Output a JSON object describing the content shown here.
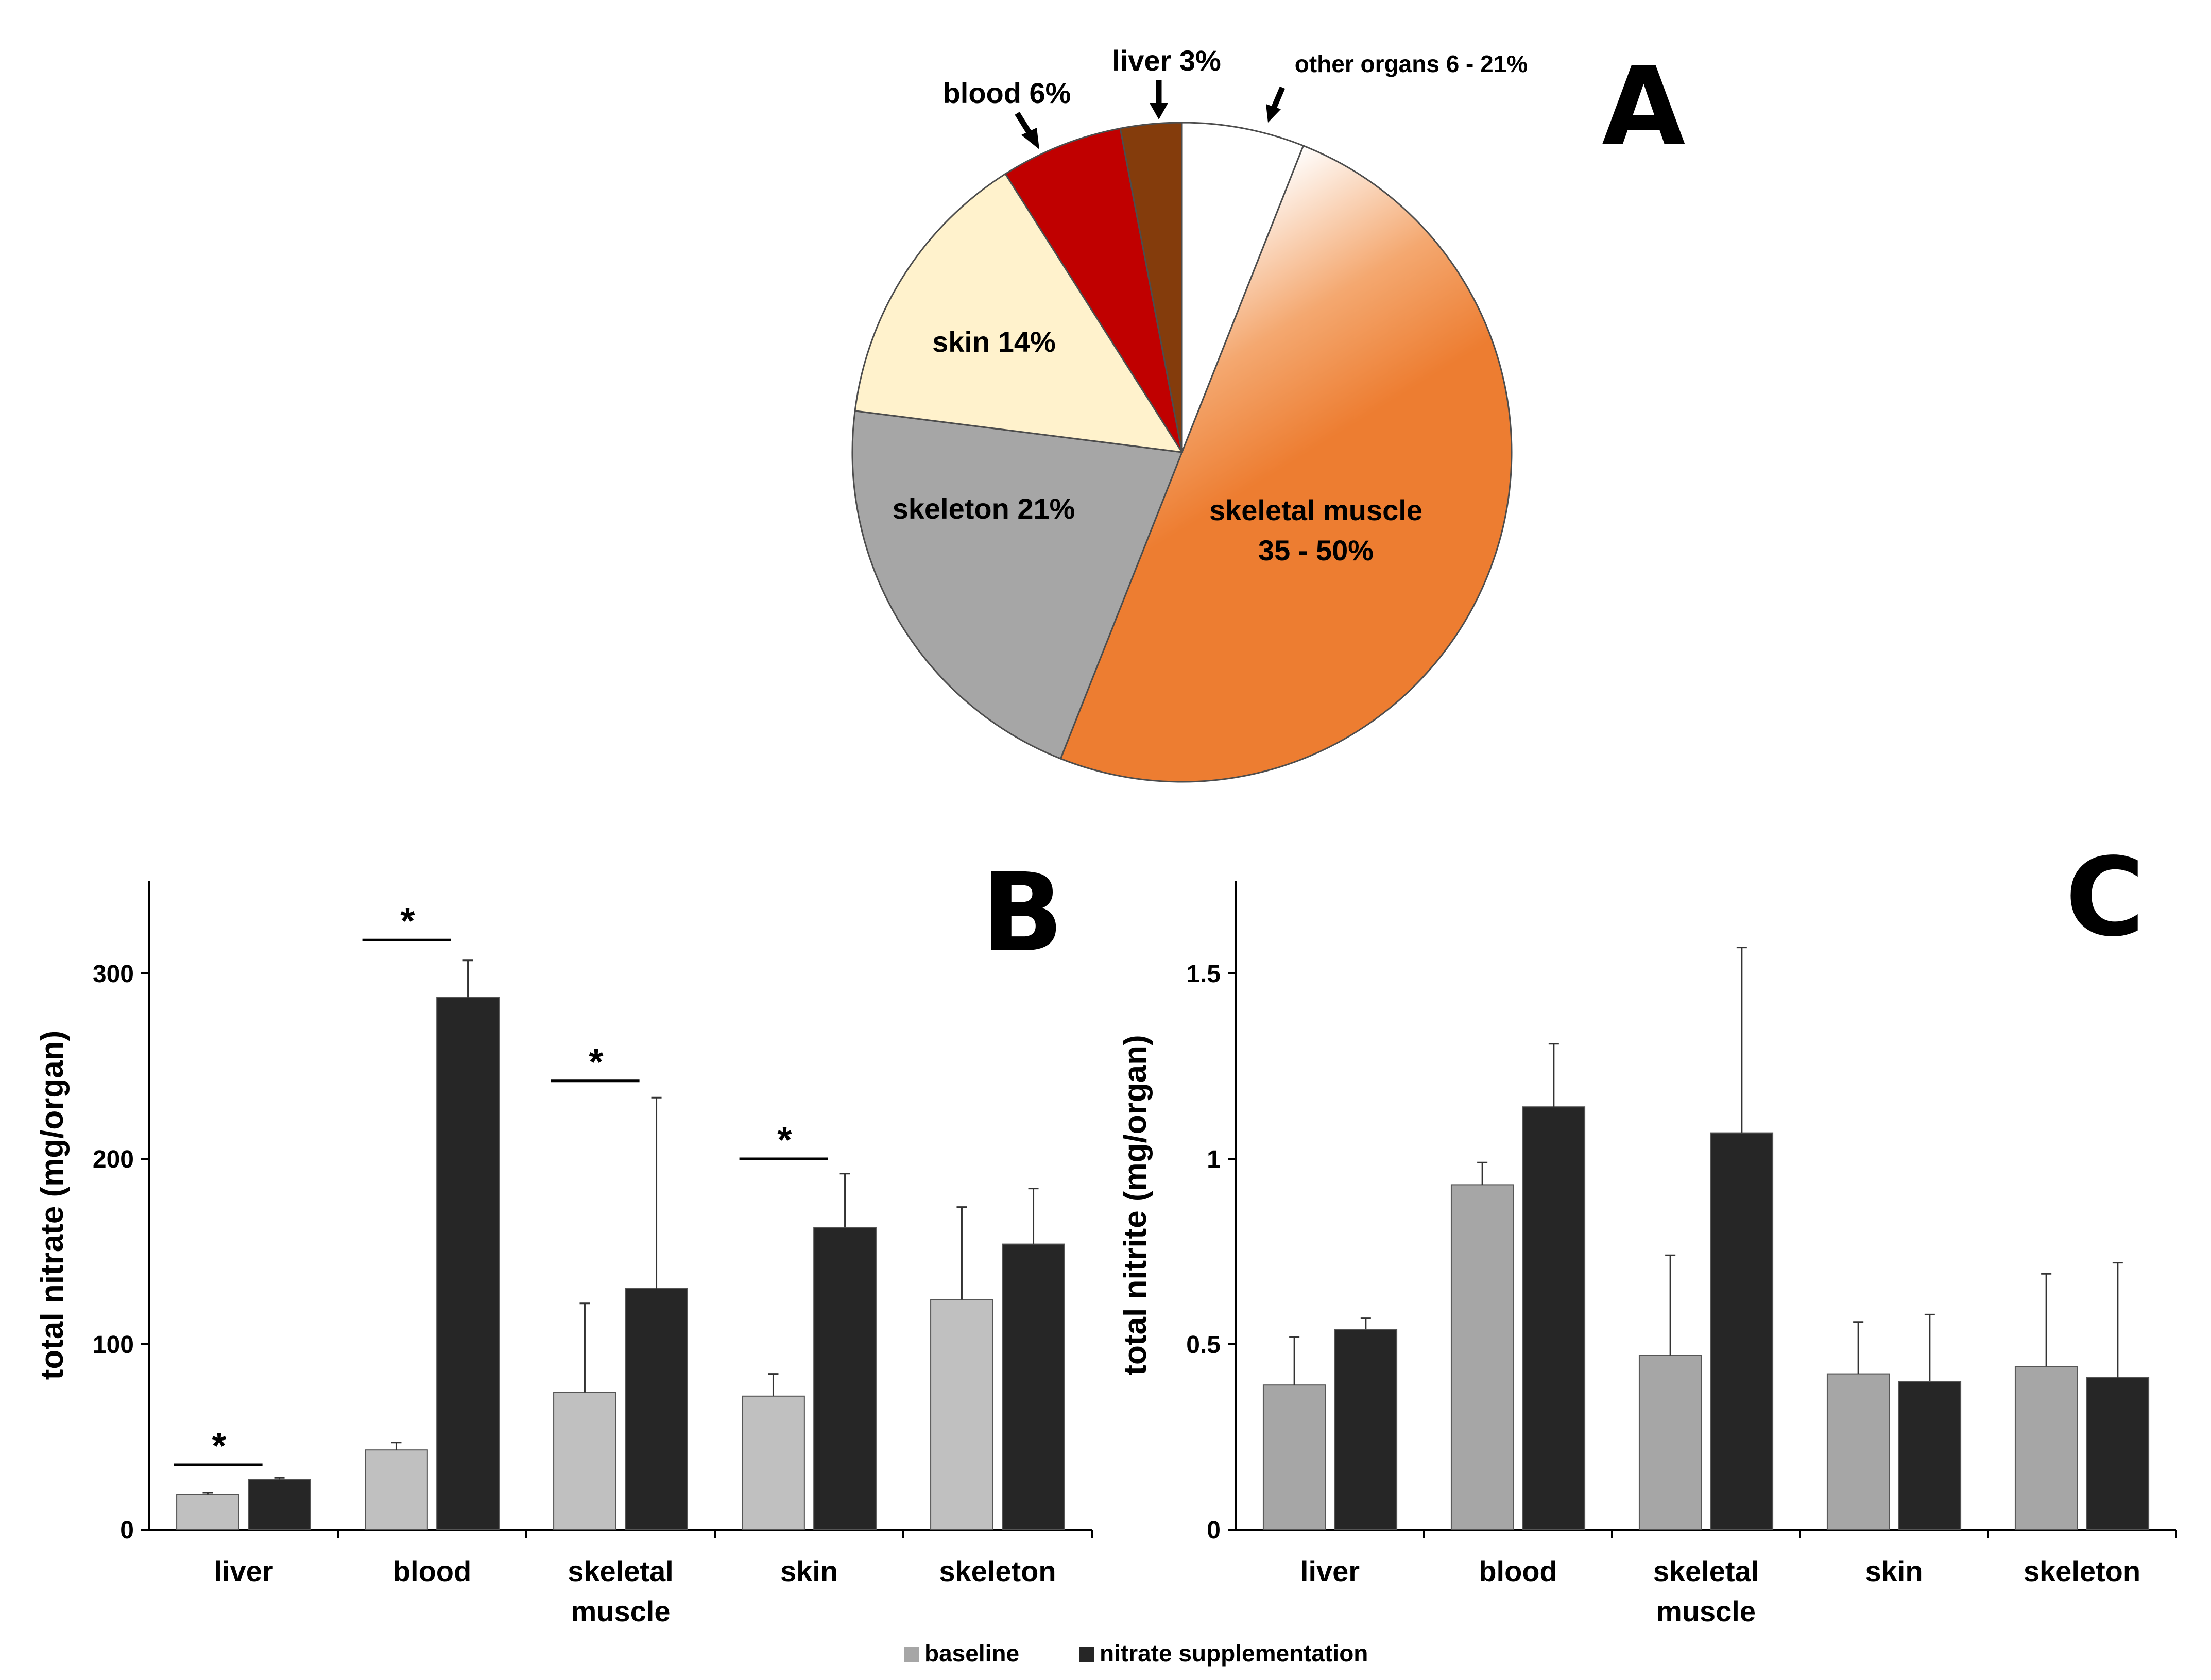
{
  "figure": {
    "colors": {
      "baseline_B": "#c0c0c0",
      "baseline_C": "#a6a6a6",
      "supplementation": "#262626",
      "axis": "#000000"
    }
  },
  "chart_data": [
    {
      "panel": "A",
      "type": "pie",
      "slices": [
        {
          "key": "other",
          "label": "other organs 6 - 21%",
          "value": 6,
          "color": "#ffffff"
        },
        {
          "key": "muscle",
          "label": "skeletal muscle",
          "label2": "35 - 50%",
          "value": 50,
          "color": "#ed7d31"
        },
        {
          "key": "skeleton",
          "label": "skeleton 21%",
          "value": 21,
          "color": "#a6a6a6"
        },
        {
          "key": "skin",
          "label": "skin 14%",
          "value": 14,
          "color": "#fff2cc"
        },
        {
          "key": "blood",
          "label": "blood 6%",
          "value": 6,
          "color": "#c00000"
        },
        {
          "key": "liver",
          "label": "liver 3%",
          "value": 3,
          "color": "#843c0c"
        }
      ]
    },
    {
      "panel": "B",
      "type": "bar",
      "ylabel": "total nitrate (mg/organ)",
      "ylim": [
        0,
        350
      ],
      "yticks": [
        0,
        100,
        200,
        300
      ],
      "ytick_labels": [
        "0",
        "100",
        "200",
        "300"
      ],
      "categories": [
        "liver",
        "blood",
        "skeletal",
        "skin",
        "skeleton"
      ],
      "categories_line2": [
        "",
        "",
        "muscle",
        "",
        ""
      ],
      "series": [
        {
          "name": "baseline",
          "values": [
            19,
            43,
            74,
            72,
            124
          ],
          "errors": [
            1,
            4,
            48,
            12,
            50
          ],
          "color": "#c0c0c0"
        },
        {
          "name": "nitrate supplementation",
          "values": [
            27,
            287,
            130,
            163,
            154
          ],
          "errors": [
            1,
            20,
            103,
            29,
            30
          ],
          "color": "#262626"
        }
      ],
      "significance": [
        {
          "category": 0,
          "level": 35,
          "label": "*"
        },
        {
          "category": 1,
          "level": 318,
          "label": "*"
        },
        {
          "category": 2,
          "level": 242,
          "label": "*"
        },
        {
          "category": 3,
          "level": 200,
          "label": "*"
        }
      ]
    },
    {
      "panel": "C",
      "type": "bar",
      "ylabel": "total nitrite (mg/organ)",
      "ylim": [
        0,
        1.75
      ],
      "yticks": [
        0,
        0.5,
        1,
        1.5
      ],
      "ytick_labels": [
        "0",
        "0.5",
        "1",
        "1.5"
      ],
      "categories": [
        "liver",
        "blood",
        "skeletal",
        "skin",
        "skeleton"
      ],
      "categories_line2": [
        "",
        "",
        "muscle",
        "",
        ""
      ],
      "series": [
        {
          "name": "baseline",
          "values": [
            0.39,
            0.93,
            0.47,
            0.42,
            0.44
          ],
          "errors": [
            0.13,
            0.06,
            0.27,
            0.14,
            0.25
          ],
          "color": "#a6a6a6"
        },
        {
          "name": "nitrate supplementation",
          "values": [
            0.54,
            1.14,
            1.07,
            0.4,
            0.41
          ],
          "errors": [
            0.03,
            0.17,
            0.5,
            0.18,
            0.31
          ],
          "color": "#262626"
        }
      ],
      "significance": []
    }
  ],
  "legend": {
    "items": [
      {
        "label": "baseline",
        "color": "#a6a6a6"
      },
      {
        "label": "nitrate supplementation",
        "color": "#262626"
      }
    ]
  }
}
